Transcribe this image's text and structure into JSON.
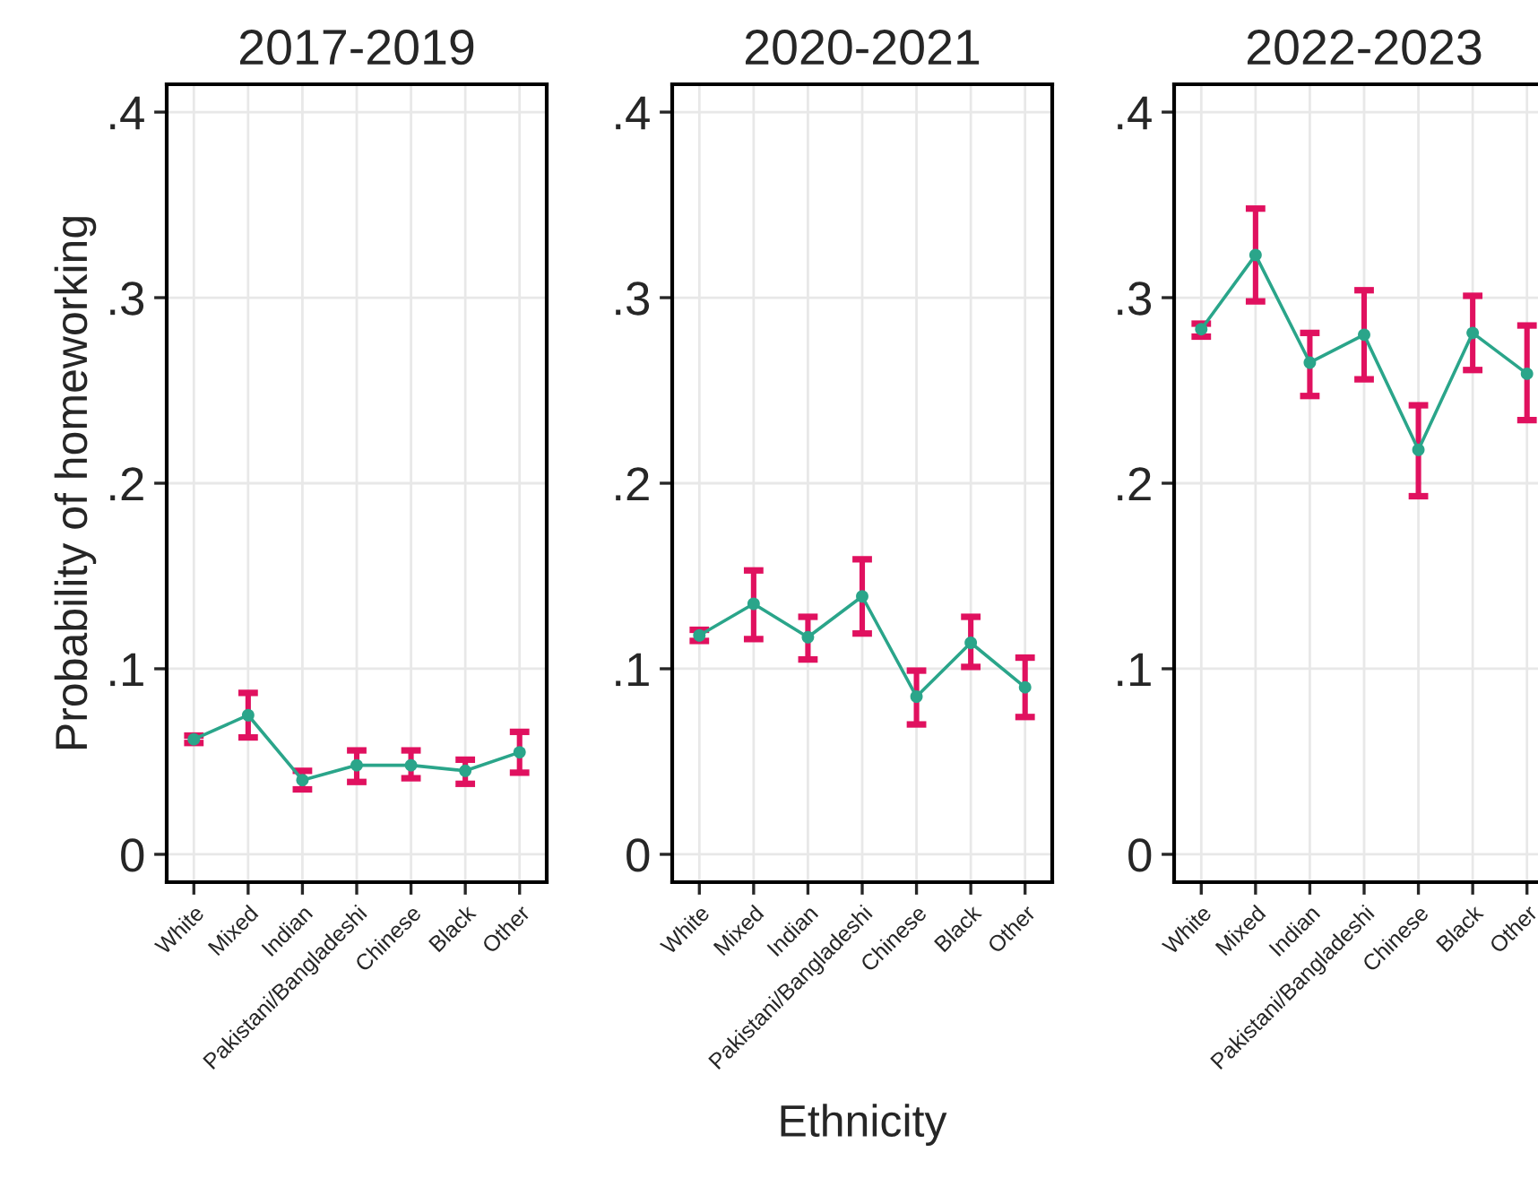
{
  "chart_data": [
    {
      "type": "line",
      "title": "2017-2019",
      "ylabel": "Probability of homeworking",
      "categories": [
        "White",
        "Mixed",
        "Indian",
        "Pakistani/Bangladeshi",
        "Chinese",
        "Black",
        "Other"
      ],
      "ylim": [
        -0.015,
        0.415
      ],
      "yticks": [
        {
          "value": 0,
          "label": "0"
        },
        {
          "value": 0.1,
          "label": ".1"
        },
        {
          "value": 0.2,
          "label": ".2"
        },
        {
          "value": 0.3,
          "label": ".3"
        },
        {
          "value": 0.4,
          "label": ".4"
        }
      ],
      "grid": true,
      "marker": "circle",
      "line_style": "solid",
      "series": [
        {
          "color": "#2aa58a",
          "values": [
            0.062,
            0.075,
            0.04,
            0.048,
            0.048,
            0.045,
            0.055
          ],
          "errors": [
            [
              0.06,
              0.064
            ],
            [
              0.063,
              0.087
            ],
            [
              0.035,
              0.045
            ],
            [
              0.039,
              0.056
            ],
            [
              0.041,
              0.056
            ],
            [
              0.038,
              0.051
            ],
            [
              0.044,
              0.066
            ]
          ]
        }
      ]
    },
    {
      "type": "line",
      "title": "2020-2021",
      "xlabel": "Ethnicity",
      "categories": [
        "White",
        "Mixed",
        "Indian",
        "Pakistani/Bangladeshi",
        "Chinese",
        "Black",
        "Other"
      ],
      "ylim": [
        -0.015,
        0.415
      ],
      "yticks": [
        {
          "value": 0,
          "label": "0"
        },
        {
          "value": 0.1,
          "label": ".1"
        },
        {
          "value": 0.2,
          "label": ".2"
        },
        {
          "value": 0.3,
          "label": ".3"
        },
        {
          "value": 0.4,
          "label": ".4"
        }
      ],
      "grid": true,
      "marker": "circle",
      "line_style": "solid",
      "series": [
        {
          "color": "#2aa58a",
          "values": [
            0.118,
            0.135,
            0.117,
            0.139,
            0.085,
            0.114,
            0.09
          ],
          "errors": [
            [
              0.115,
              0.121
            ],
            [
              0.116,
              0.153
            ],
            [
              0.105,
              0.128
            ],
            [
              0.119,
              0.159
            ],
            [
              0.07,
              0.099
            ],
            [
              0.101,
              0.128
            ],
            [
              0.074,
              0.106
            ]
          ]
        }
      ]
    },
    {
      "type": "line",
      "title": "2022-2023",
      "categories": [
        "White",
        "Mixed",
        "Indian",
        "Pakistani/Bangladeshi",
        "Chinese",
        "Black",
        "Other"
      ],
      "ylim": [
        -0.015,
        0.415
      ],
      "yticks": [
        {
          "value": 0,
          "label": "0"
        },
        {
          "value": 0.1,
          "label": ".1"
        },
        {
          "value": 0.2,
          "label": ".2"
        },
        {
          "value": 0.3,
          "label": ".3"
        },
        {
          "value": 0.4,
          "label": ".4"
        }
      ],
      "grid": true,
      "marker": "circle",
      "line_style": "solid",
      "series": [
        {
          "color": "#2aa58a",
          "values": [
            0.283,
            0.323,
            0.265,
            0.28,
            0.218,
            0.281,
            0.259
          ],
          "errors": [
            [
              0.279,
              0.286
            ],
            [
              0.298,
              0.348
            ],
            [
              0.247,
              0.281
            ],
            [
              0.256,
              0.304
            ],
            [
              0.193,
              0.242
            ],
            [
              0.261,
              0.301
            ],
            [
              0.234,
              0.285
            ]
          ]
        }
      ]
    }
  ]
}
